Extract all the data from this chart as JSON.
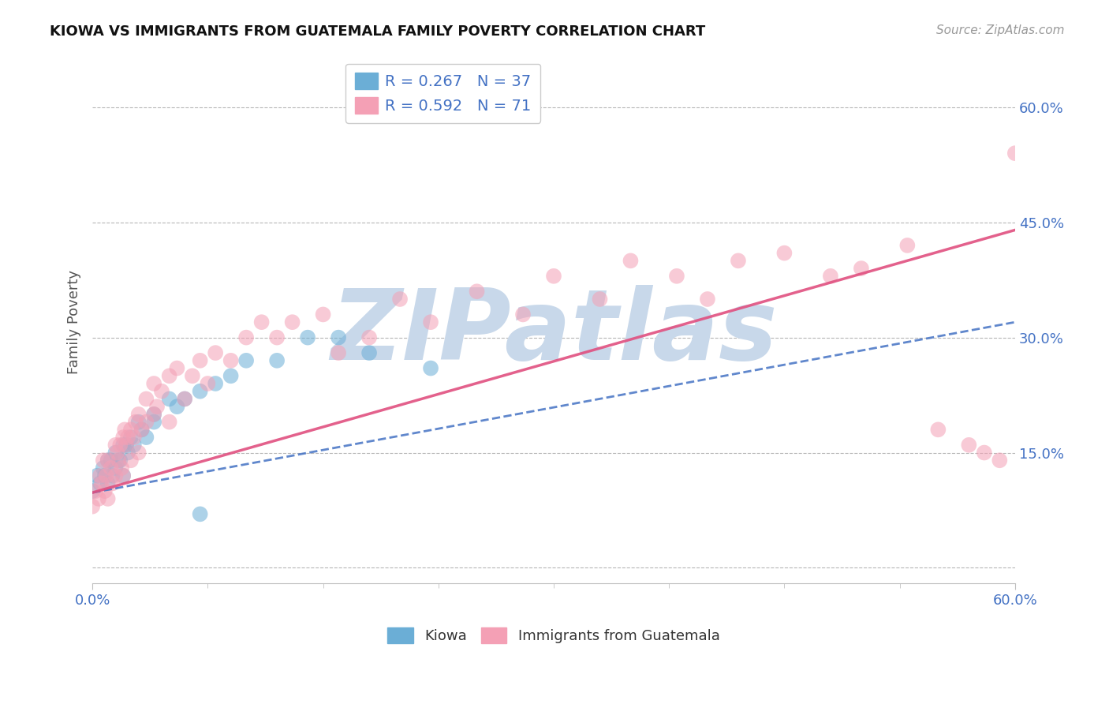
{
  "title": "KIOWA VS IMMIGRANTS FROM GUATEMALA FAMILY POVERTY CORRELATION CHART",
  "source": "Source: ZipAtlas.com",
  "ylabel": "Family Poverty",
  "xlim": [
    0.0,
    0.6
  ],
  "ylim": [
    -0.02,
    0.66
  ],
  "watermark": "ZIPatlas",
  "series": [
    {
      "name": "Kiowa",
      "R": 0.267,
      "N": 37,
      "color": "#6baed6",
      "line_style": "dashed",
      "line_color": "#4472c4",
      "x": [
        0.0,
        0.003,
        0.005,
        0.007,
        0.008,
        0.01,
        0.01,
        0.012,
        0.013,
        0.015,
        0.015,
        0.017,
        0.018,
        0.02,
        0.02,
        0.022,
        0.023,
        0.025,
        0.027,
        0.03,
        0.032,
        0.035,
        0.04,
        0.04,
        0.05,
        0.055,
        0.06,
        0.07,
        0.08,
        0.09,
        0.1,
        0.12,
        0.14,
        0.16,
        0.18,
        0.22,
        0.07
      ],
      "y": [
        0.1,
        0.12,
        0.11,
        0.13,
        0.12,
        0.14,
        0.11,
        0.14,
        0.12,
        0.13,
        0.15,
        0.14,
        0.14,
        0.16,
        0.12,
        0.16,
        0.15,
        0.17,
        0.16,
        0.19,
        0.18,
        0.17,
        0.2,
        0.19,
        0.22,
        0.21,
        0.22,
        0.23,
        0.24,
        0.25,
        0.27,
        0.27,
        0.3,
        0.3,
        0.28,
        0.26,
        0.07
      ],
      "trend_x": [
        0.0,
        0.6
      ],
      "trend_y": [
        0.098,
        0.32
      ]
    },
    {
      "name": "Immigrants from Guatemala",
      "R": 0.592,
      "N": 71,
      "color": "#f4a0b5",
      "line_style": "solid",
      "line_color": "#e05080",
      "x": [
        0.0,
        0.002,
        0.004,
        0.005,
        0.006,
        0.007,
        0.008,
        0.009,
        0.01,
        0.01,
        0.012,
        0.013,
        0.015,
        0.015,
        0.016,
        0.017,
        0.018,
        0.019,
        0.02,
        0.02,
        0.021,
        0.022,
        0.023,
        0.025,
        0.025,
        0.027,
        0.028,
        0.03,
        0.03,
        0.032,
        0.035,
        0.035,
        0.04,
        0.04,
        0.042,
        0.045,
        0.05,
        0.05,
        0.055,
        0.06,
        0.065,
        0.07,
        0.075,
        0.08,
        0.09,
        0.1,
        0.11,
        0.12,
        0.13,
        0.15,
        0.16,
        0.18,
        0.2,
        0.22,
        0.25,
        0.28,
        0.3,
        0.33,
        0.35,
        0.38,
        0.4,
        0.42,
        0.45,
        0.48,
        0.5,
        0.53,
        0.55,
        0.57,
        0.58,
        0.59,
        0.6
      ],
      "y": [
        0.08,
        0.1,
        0.09,
        0.12,
        0.11,
        0.14,
        0.1,
        0.12,
        0.09,
        0.14,
        0.13,
        0.11,
        0.16,
        0.12,
        0.15,
        0.14,
        0.16,
        0.13,
        0.17,
        0.12,
        0.18,
        0.16,
        0.17,
        0.14,
        0.18,
        0.17,
        0.19,
        0.15,
        0.2,
        0.18,
        0.22,
        0.19,
        0.2,
        0.24,
        0.21,
        0.23,
        0.25,
        0.19,
        0.26,
        0.22,
        0.25,
        0.27,
        0.24,
        0.28,
        0.27,
        0.3,
        0.32,
        0.3,
        0.32,
        0.33,
        0.28,
        0.3,
        0.35,
        0.32,
        0.36,
        0.33,
        0.38,
        0.35,
        0.4,
        0.38,
        0.35,
        0.4,
        0.41,
        0.38,
        0.39,
        0.42,
        0.18,
        0.16,
        0.15,
        0.14,
        0.54
      ],
      "trend_x": [
        0.0,
        0.6
      ],
      "trend_y": [
        0.098,
        0.44
      ]
    }
  ],
  "legend_entries": [
    {
      "label": "R = 0.267   N = 37",
      "color": "#6baed6"
    },
    {
      "label": "R = 0.592   N = 71",
      "color": "#f4a0b5"
    }
  ],
  "bottom_legend": [
    {
      "label": "Kiowa",
      "color": "#6baed6"
    },
    {
      "label": "Immigrants from Guatemala",
      "color": "#f4a0b5"
    }
  ],
  "title_color": "#111111",
  "axis_tick_color": "#4472c4",
  "grid_color": "#b0b0b0",
  "watermark_color": "#c8d8ea",
  "background_color": "#ffffff"
}
